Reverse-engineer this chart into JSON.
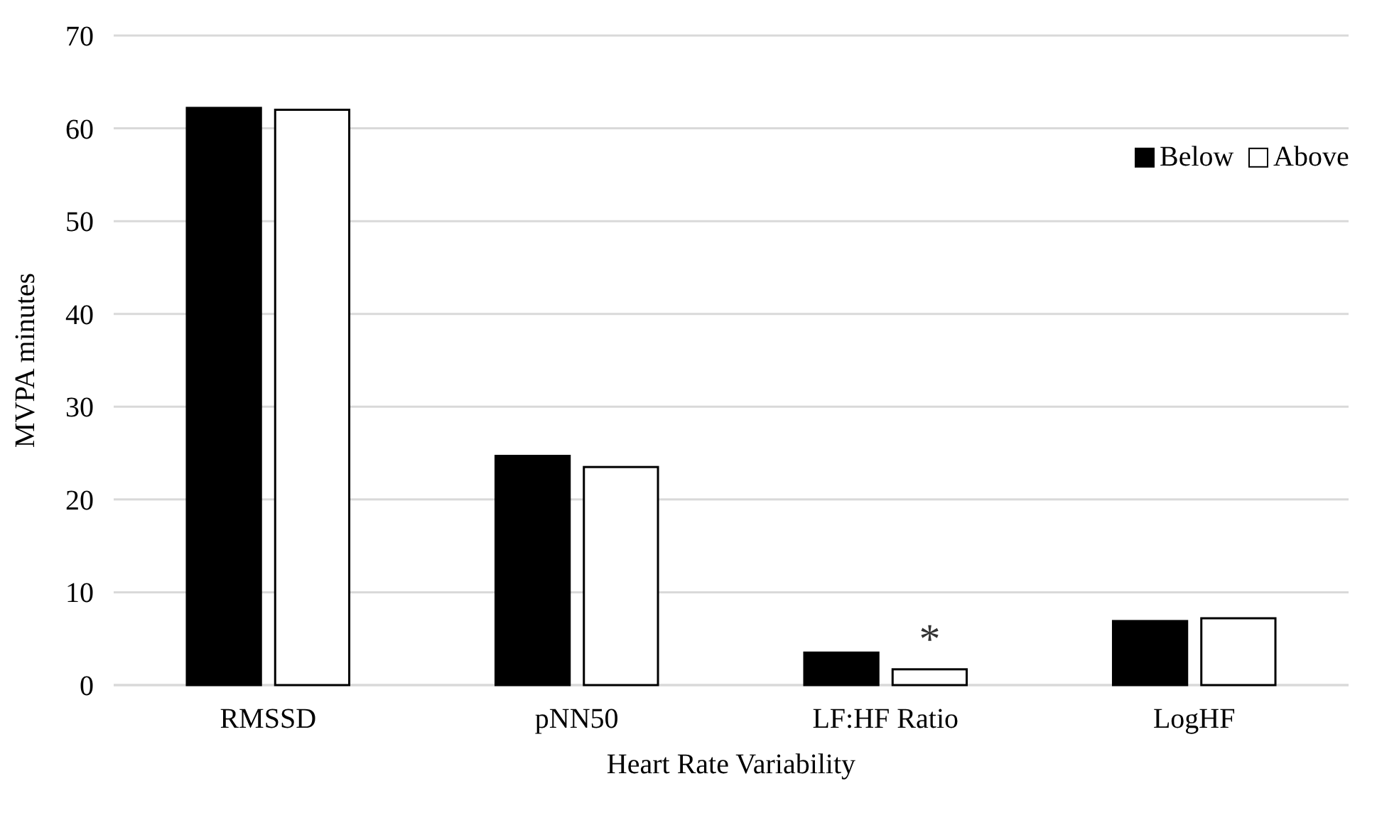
{
  "chart_data": {
    "type": "bar",
    "xlabel": "Heart Rate Variability",
    "ylabel": "MVPA minutes",
    "categories": [
      "RMSSD",
      "pNN50",
      "LF:HF Ratio",
      "LogHF"
    ],
    "series": [
      {
        "name": "Below",
        "color": "#000000",
        "values": [
          62.2,
          24.7,
          3.5,
          6.9
        ]
      },
      {
        "name": "Above",
        "color": "#ffffff",
        "values": [
          62.0,
          23.5,
          1.7,
          7.2
        ]
      }
    ],
    "ylim": [
      0,
      70
    ],
    "yticks": [
      0,
      10,
      20,
      30,
      40,
      50,
      60,
      70
    ],
    "grid": "y",
    "legend": "top right",
    "annotations": [
      {
        "text": "*",
        "x": "LF:HF Ratio",
        "y": 1.7
      }
    ]
  }
}
